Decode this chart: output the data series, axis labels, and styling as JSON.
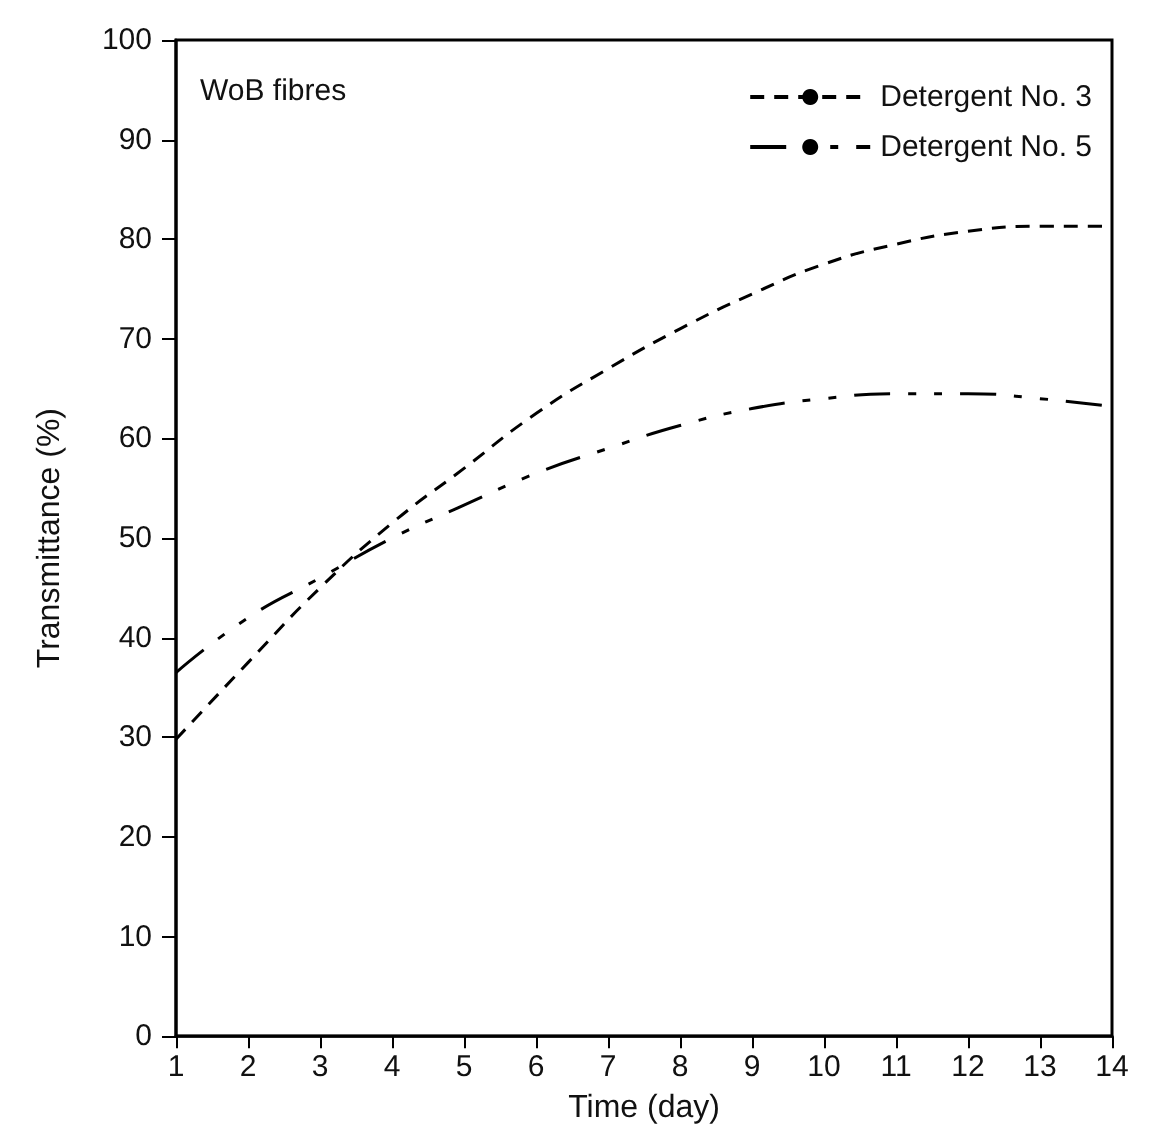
{
  "chart_data": {
    "type": "line",
    "xlabel": "Time (day)",
    "ylabel": "Transmittance (%)",
    "annotations": [
      "WoB fibres"
    ],
    "x": [
      1,
      2,
      3,
      4,
      5,
      6,
      7,
      8,
      9,
      10,
      11,
      12,
      13,
      14
    ],
    "series": [
      {
        "name": "Detergent No. 3",
        "color": "#000000",
        "line_style": "dashed",
        "values": [
          29.8,
          37.5,
          45,
          51.5,
          57,
          62.5,
          67,
          71,
          74.5,
          77.5,
          79.5,
          80.8,
          81.3,
          81.3
        ]
      },
      {
        "name": "Detergent No. 5",
        "color": "#000000",
        "line_style": "dashdot",
        "values": [
          36.5,
          42,
          46,
          50,
          53.3,
          56.5,
          59,
          61.3,
          63,
          64,
          64.5,
          64.5,
          64,
          63.2
        ]
      }
    ],
    "xlim": [
      1,
      14
    ],
    "xticks": [
      1,
      2,
      3,
      4,
      5,
      6,
      7,
      8,
      9,
      10,
      11,
      12,
      13,
      14
    ],
    "ylim": [
      0,
      100
    ],
    "yticks": [
      0,
      10,
      20,
      30,
      40,
      50,
      60,
      70,
      80,
      90,
      100
    ],
    "grid": false,
    "legend": "top right",
    "marker": "none"
  }
}
